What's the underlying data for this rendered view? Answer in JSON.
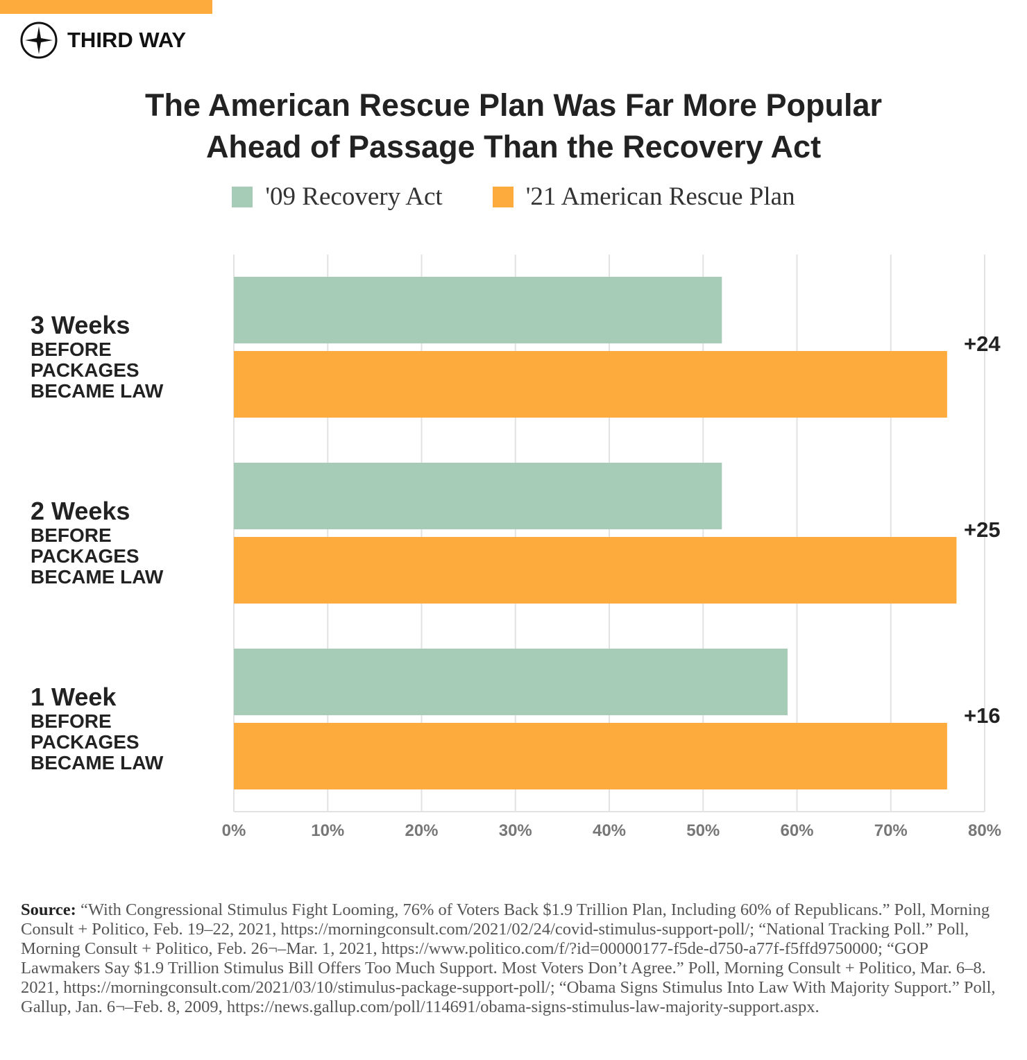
{
  "brand": "THIRD WAY",
  "chart_data": {
    "type": "hbar",
    "title": "The American Rescue Plan Was Far More Popular Ahead of Passage Than the Recovery Act",
    "categories": [
      "3 Weeks",
      "2 Weeks",
      "1 Week"
    ],
    "category_notes": [
      "BEFORE PACKAGES BECAME LAW",
      "BEFORE PACKAGES BECAME LAW",
      "BEFORE PACKAGES BECAME LAW"
    ],
    "series": [
      {
        "name": "'09 Recovery Act",
        "color": "#a6cbb6",
        "values": [
          52,
          52,
          59
        ]
      },
      {
        "name": "'21 American Rescue Plan",
        "color": "#fdab3d",
        "values": [
          76,
          77,
          76
        ]
      }
    ],
    "annotations": [
      "+24",
      "+25",
      "+16"
    ],
    "xlim": [
      0,
      80
    ],
    "xticks": [
      {
        "value": 0,
        "label": "0%"
      },
      {
        "value": 10,
        "label": "10%"
      },
      {
        "value": 20,
        "label": "20%"
      },
      {
        "value": 30,
        "label": "30%"
      },
      {
        "value": 40,
        "label": "40%"
      },
      {
        "value": 50,
        "label": "50%"
      },
      {
        "value": 60,
        "label": "60%"
      },
      {
        "value": 70,
        "label": "70%"
      },
      {
        "value": 80,
        "label": "80%"
      }
    ],
    "grid": true,
    "legend": "top"
  },
  "source_label": "Source:",
  "source_text": "“With Congressional Stimulus Fight Looming, 76% of Voters Back $1.9 Trillion Plan, Including 60% of Republicans.” Poll, Morning Consult + Politico, Feb. 19–22, 2021, https://morningconsult.com/2021/02/24/covid-stimulus-support-poll/; “National Tracking Poll.” Poll, Morning Consult + Politico, Feb. 26¬–Mar. 1, 2021, https://www.politico.com/f/?id=00000177-f5de-d750-a77f-f5ffd9750000; “GOP Lawmakers Say $1.9 Trillion Stimulus Bill Offers Too Much Support. Most Voters Don’t Agree.” Poll, Morning Consult + Politico, Mar. 6–8. 2021, https://morningconsult.com/2021/03/10/stimulus-package-support-poll/; “Obama Signs Stimulus Into Law With Majority Support.” Poll, Gallup, Jan. 6¬–Feb. 8, 2009, https://news.gallup.com/poll/114691/obama-signs-stimulus-law-majority-support.aspx."
}
